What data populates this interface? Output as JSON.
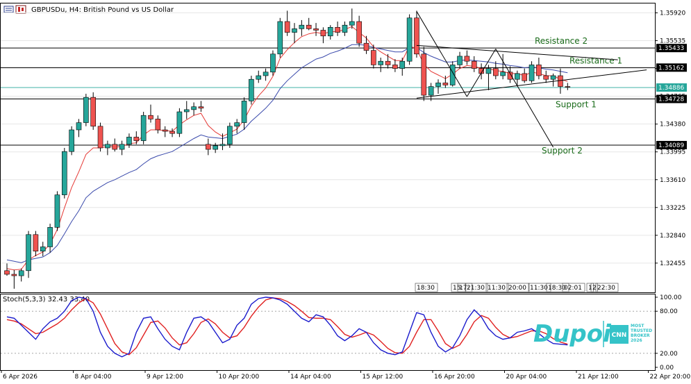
{
  "header": {
    "symbol_line": "GBPUSDu, H4:  British Pound vs US Dollar",
    "stoch_label": "Stoch(5,3,3) 32.43 33.40"
  },
  "colors": {
    "bull": "#26a69a",
    "bear": "#ef5350",
    "ma_fast": "#e53935",
    "ma_slow": "#3949ab",
    "stoch_main": "#1a1acc",
    "stoch_signal": "#e02020",
    "annotation": "#1a6b1a",
    "hline": "#000000",
    "current_price": "#26a69a"
  },
  "brand": {
    "name": "Dupoin",
    "badge": "CNN",
    "tagline": "MOST TRUSTED BROKER 2026"
  },
  "chart_data": {
    "type": "candlestick",
    "price_axis": {
      "ticks": [
        "1.35920",
        "1.35535",
        "1.35150",
        "1.34765",
        "1.34380",
        "1.33995",
        "1.33610",
        "1.33225",
        "1.32840",
        "1.32455"
      ],
      "ylim": [
        1.3205,
        1.3605
      ]
    },
    "price_tags": [
      {
        "label": "1.35433",
        "value": 1.35433,
        "style": "line"
      },
      {
        "label": "1.35162",
        "value": 1.35162,
        "style": "line"
      },
      {
        "label": "1.34886",
        "value": 1.34886,
        "style": "current"
      },
      {
        "label": "1.34728",
        "value": 1.34728,
        "style": "line"
      },
      {
        "label": "1.34089",
        "value": 1.34089,
        "style": "line"
      }
    ],
    "levels": [
      {
        "name": "Resistance 2",
        "value": 1.35433
      },
      {
        "name": "Resistance 1",
        "value": 1.35162
      },
      {
        "name": "Support 1",
        "value": 1.34728
      },
      {
        "name": "Support 2",
        "value": 1.34089
      }
    ],
    "time_axis": [
      "6 Apr 2026",
      "8 Apr 04:00",
      "9 Apr 12:00",
      "10 Apr 20:00",
      "14 Apr 04:00",
      "15 Apr 12:00",
      "16 Apr 20:00",
      "20 Apr 04:00",
      "21 Apr 12:00",
      "22 Apr 20:00"
    ],
    "time_axis_index": [
      0,
      10,
      20,
      30,
      40,
      50,
      60,
      70,
      80,
      90
    ],
    "scroll_labels": [
      "18:30",
      "15:",
      "17:",
      "21:30",
      "11:30",
      "20:00",
      "11:30",
      "18:30",
      "02:01",
      "1",
      "2",
      "22:30"
    ],
    "candles": [
      [
        1.3235,
        1.3245,
        1.3228,
        1.323
      ],
      [
        1.323,
        1.3236,
        1.321,
        1.3228
      ],
      [
        1.3228,
        1.3238,
        1.322,
        1.3235
      ],
      [
        1.3235,
        1.329,
        1.3225,
        1.3285
      ],
      [
        1.3285,
        1.329,
        1.3255,
        1.3262
      ],
      [
        1.3262,
        1.3275,
        1.3255,
        1.3268
      ],
      [
        1.3268,
        1.33,
        1.326,
        1.3295
      ],
      [
        1.3295,
        1.3345,
        1.329,
        1.334
      ],
      [
        1.334,
        1.3405,
        1.3335,
        1.34
      ],
      [
        1.34,
        1.3435,
        1.3395,
        1.343
      ],
      [
        1.343,
        1.3445,
        1.342,
        1.344
      ],
      [
        1.344,
        1.348,
        1.3435,
        1.3475
      ],
      [
        1.3475,
        1.3482,
        1.343,
        1.3435
      ],
      [
        1.3435,
        1.344,
        1.34,
        1.3405
      ],
      [
        1.3405,
        1.3415,
        1.3395,
        1.341
      ],
      [
        1.341,
        1.3418,
        1.34,
        1.3403
      ],
      [
        1.3403,
        1.3415,
        1.3395,
        1.341
      ],
      [
        1.341,
        1.3425,
        1.3405,
        1.342
      ],
      [
        1.342,
        1.3428,
        1.341,
        1.3415
      ],
      [
        1.3415,
        1.3455,
        1.341,
        1.345
      ],
      [
        1.345,
        1.3465,
        1.344,
        1.3445
      ],
      [
        1.3445,
        1.345,
        1.3425,
        1.343
      ],
      [
        1.343,
        1.3435,
        1.342,
        1.3428
      ],
      [
        1.3428,
        1.3432,
        1.342,
        1.3425
      ],
      [
        1.3425,
        1.346,
        1.342,
        1.3455
      ],
      [
        1.3455,
        1.347,
        1.3445,
        1.3458
      ],
      [
        1.3458,
        1.3468,
        1.345,
        1.3462
      ],
      [
        1.3462,
        1.347,
        1.3455,
        1.346
      ],
      [
        1.341,
        1.3418,
        1.3395,
        1.3403
      ],
      [
        1.3403,
        1.3412,
        1.3398,
        1.3408
      ],
      [
        1.3408,
        1.3425,
        1.3402,
        1.341
      ],
      [
        1.341,
        1.344,
        1.3405,
        1.3435
      ],
      [
        1.3435,
        1.3445,
        1.3425,
        1.344
      ],
      [
        1.344,
        1.3475,
        1.343,
        1.347
      ],
      [
        1.347,
        1.3505,
        1.3465,
        1.35
      ],
      [
        1.35,
        1.3512,
        1.3495,
        1.3505
      ],
      [
        1.3505,
        1.3515,
        1.3498,
        1.351
      ],
      [
        1.351,
        1.354,
        1.3505,
        1.3535
      ],
      [
        1.3535,
        1.3585,
        1.353,
        1.358
      ],
      [
        1.358,
        1.3595,
        1.356,
        1.3565
      ],
      [
        1.3565,
        1.3578,
        1.355,
        1.357
      ],
      [
        1.357,
        1.3582,
        1.356,
        1.3575
      ],
      [
        1.3575,
        1.3585,
        1.3568,
        1.357
      ],
      [
        1.357,
        1.3578,
        1.356,
        1.3568
      ],
      [
        1.3568,
        1.3572,
        1.355,
        1.356
      ],
      [
        1.356,
        1.3575,
        1.3555,
        1.3572
      ],
      [
        1.3572,
        1.358,
        1.356,
        1.3565
      ],
      [
        1.3565,
        1.358,
        1.356,
        1.3575
      ],
      [
        1.3575,
        1.3598,
        1.357,
        1.358
      ],
      [
        1.358,
        1.3588,
        1.3545,
        1.355
      ],
      [
        1.355,
        1.356,
        1.3535,
        1.354
      ],
      [
        1.354,
        1.3548,
        1.3515,
        1.352
      ],
      [
        1.352,
        1.353,
        1.351,
        1.3525
      ],
      [
        1.3525,
        1.3535,
        1.3515,
        1.352
      ],
      [
        1.352,
        1.3528,
        1.351,
        1.3515
      ],
      [
        1.3515,
        1.353,
        1.3505,
        1.3525
      ],
      [
        1.3525,
        1.359,
        1.352,
        1.3585
      ],
      [
        1.3585,
        1.3595,
        1.353,
        1.3535
      ],
      [
        1.3535,
        1.3545,
        1.347,
        1.3478
      ],
      [
        1.3478,
        1.3495,
        1.347,
        1.349
      ],
      [
        1.349,
        1.35,
        1.348,
        1.3495
      ],
      [
        1.3495,
        1.3505,
        1.3488,
        1.3492
      ],
      [
        1.3492,
        1.3525,
        1.349,
        1.352
      ],
      [
        1.352,
        1.3538,
        1.3515,
        1.3532
      ],
      [
        1.3532,
        1.354,
        1.352,
        1.3525
      ],
      [
        1.3525,
        1.3532,
        1.351,
        1.3515
      ],
      [
        1.3515,
        1.3522,
        1.35,
        1.3508
      ],
      [
        1.3508,
        1.352,
        1.3485,
        1.3515
      ],
      [
        1.3515,
        1.3525,
        1.35,
        1.3505
      ],
      [
        1.3505,
        1.3535,
        1.35,
        1.351
      ],
      [
        1.351,
        1.3518,
        1.3495,
        1.35
      ],
      [
        1.35,
        1.3512,
        1.349,
        1.3508
      ],
      [
        1.3508,
        1.3515,
        1.3495,
        1.3498
      ],
      [
        1.3498,
        1.3525,
        1.3495,
        1.352
      ],
      [
        1.352,
        1.353,
        1.35,
        1.3505
      ],
      [
        1.3505,
        1.3512,
        1.3495,
        1.35
      ],
      [
        1.35,
        1.3508,
        1.349,
        1.3505
      ],
      [
        1.3505,
        1.3515,
        1.348,
        1.349
      ],
      [
        1.349,
        1.3495,
        1.3485,
        1.3489
      ]
    ],
    "ma_fast": [
      1.3238,
      1.3236,
      1.3237,
      1.325,
      1.3256,
      1.3261,
      1.3272,
      1.3292,
      1.3322,
      1.335,
      1.3372,
      1.3396,
      1.3405,
      1.3405,
      1.3407,
      1.3406,
      1.3407,
      1.3411,
      1.3412,
      1.3423,
      1.343,
      1.343,
      1.3429,
      1.3428,
      1.3437,
      1.3444,
      1.345,
      1.3453,
      1.3436,
      1.3427,
      1.3421,
      1.3426,
      1.3431,
      1.3444,
      1.3463,
      1.3477,
      1.3488,
      1.3504,
      1.3529,
      1.3541,
      1.3551,
      1.3559,
      1.3563,
      1.3565,
      1.3563,
      1.3566,
      1.3566,
      1.3569,
      1.3573,
      1.3565,
      1.3557,
      1.3545,
      1.3538,
      1.3532,
      1.3526,
      1.3526,
      1.3546,
      1.3542,
      1.3521,
      1.3511,
      1.3506,
      1.3501,
      1.3507,
      1.3515,
      1.3519,
      1.3518,
      1.3515,
      1.3515,
      1.3512,
      1.3511,
      1.3508,
      1.3508,
      1.3505,
      1.351,
      1.3508,
      1.3505,
      1.3505,
      1.35,
      1.3497
    ],
    "ma_slow": [
      1.325,
      1.3248,
      1.3246,
      1.325,
      1.3252,
      1.3254,
      1.326,
      1.327,
      1.3286,
      1.3303,
      1.3318,
      1.3336,
      1.3345,
      1.3351,
      1.3357,
      1.3361,
      1.3366,
      1.3371,
      1.3375,
      1.3383,
      1.339,
      1.3394,
      1.3397,
      1.34,
      1.3406,
      1.3412,
      1.3418,
      1.3423,
      1.342,
      1.3419,
      1.3418,
      1.3421,
      1.3424,
      1.3431,
      1.3442,
      1.3451,
      1.346,
      1.3471,
      1.3487,
      1.3498,
      1.3507,
      1.3516,
      1.3522,
      1.3528,
      1.3531,
      1.3536,
      1.3539,
      1.3543,
      1.3548,
      1.3548,
      1.3547,
      1.3544,
      1.3542,
      1.354,
      1.3538,
      1.3538,
      1.3544,
      1.3544,
      1.3537,
      1.3532,
      1.3528,
      1.3524,
      1.3524,
      1.3526,
      1.3527,
      1.3526,
      1.3525,
      1.3524,
      1.3522,
      1.3521,
      1.3519,
      1.3518,
      1.3516,
      1.3517,
      1.3516,
      1.3514,
      1.3513,
      1.3511,
      1.3509
    ],
    "trendlines": [
      {
        "from": [
          57,
          1.3547
        ],
        "to": [
          85,
          1.3527
        ]
      },
      {
        "from": [
          57,
          1.3474
        ],
        "to": [
          89,
          1.3513
        ]
      },
      {
        "from": [
          57,
          1.3594
        ],
        "to": [
          64,
          1.3476
        ]
      },
      {
        "from": [
          64,
          1.3476
        ],
        "to": [
          68,
          1.3542
        ]
      },
      {
        "from": [
          68,
          1.3542
        ],
        "to": [
          76,
          1.3406
        ]
      }
    ],
    "stoch": {
      "ylim": [
        0,
        100
      ],
      "ticks": [
        "100.00",
        "80.00",
        "20.00",
        "0.00"
      ],
      "k": [
        72,
        70,
        60,
        50,
        40,
        55,
        65,
        70,
        80,
        95,
        100,
        98,
        80,
        50,
        30,
        20,
        15,
        20,
        50,
        70,
        72,
        55,
        40,
        30,
        25,
        50,
        70,
        72,
        65,
        50,
        35,
        40,
        60,
        70,
        90,
        98,
        100,
        99,
        96,
        90,
        80,
        70,
        65,
        75,
        72,
        60,
        45,
        38,
        45,
        55,
        50,
        35,
        25,
        20,
        18,
        22,
        50,
        78,
        75,
        50,
        30,
        22,
        28,
        45,
        68,
        82,
        72,
        55,
        45,
        40,
        42,
        50,
        52,
        55,
        48,
        40,
        34,
        33,
        32
      ],
      "d": [
        68,
        66,
        62,
        55,
        48,
        50,
        56,
        62,
        70,
        82,
        92,
        98,
        92,
        76,
        55,
        34,
        22,
        18,
        28,
        46,
        64,
        66,
        56,
        42,
        32,
        35,
        48,
        64,
        69,
        62,
        50,
        42,
        45,
        57,
        73,
        86,
        96,
        99,
        98,
        94,
        88,
        80,
        71,
        70,
        70,
        68,
        58,
        47,
        43,
        46,
        50,
        46,
        37,
        27,
        21,
        20,
        30,
        50,
        68,
        68,
        52,
        34,
        27,
        32,
        47,
        65,
        74,
        70,
        57,
        47,
        42,
        44,
        48,
        52,
        52,
        48,
        41,
        36,
        33
      ]
    }
  }
}
